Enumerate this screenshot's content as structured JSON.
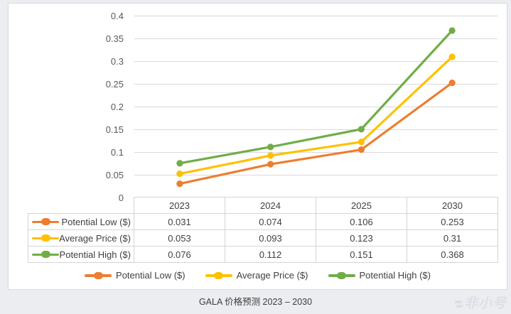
{
  "page": {
    "caption": "GALA 价格预测 2023 – 2030",
    "watermark": "非小号"
  },
  "chart_data": {
    "type": "line",
    "title": "GALA 价格预测 2023 – 2030",
    "categories": [
      "2023",
      "2024",
      "2025",
      "2030"
    ],
    "series": [
      {
        "name": "Potential Low ($)",
        "color": "#ED7D31",
        "values": [
          0.031,
          0.074,
          0.106,
          0.253
        ]
      },
      {
        "name": "Average Price ($)",
        "color": "#FFC000",
        "values": [
          0.053,
          0.093,
          0.123,
          0.31
        ]
      },
      {
        "name": "Potential High ($)",
        "color": "#70AD47",
        "values": [
          0.076,
          0.112,
          0.151,
          0.368
        ]
      }
    ],
    "xlabel": "",
    "ylabel": "",
    "ylim": [
      0,
      0.4
    ],
    "yticks": [
      0,
      0.05,
      0.1,
      0.15,
      0.2,
      0.25,
      0.3,
      0.35,
      0.4
    ],
    "grid": true,
    "legend_position": "bottom",
    "data_table_shown": true,
    "gridline_color": "#d9d9d9"
  }
}
